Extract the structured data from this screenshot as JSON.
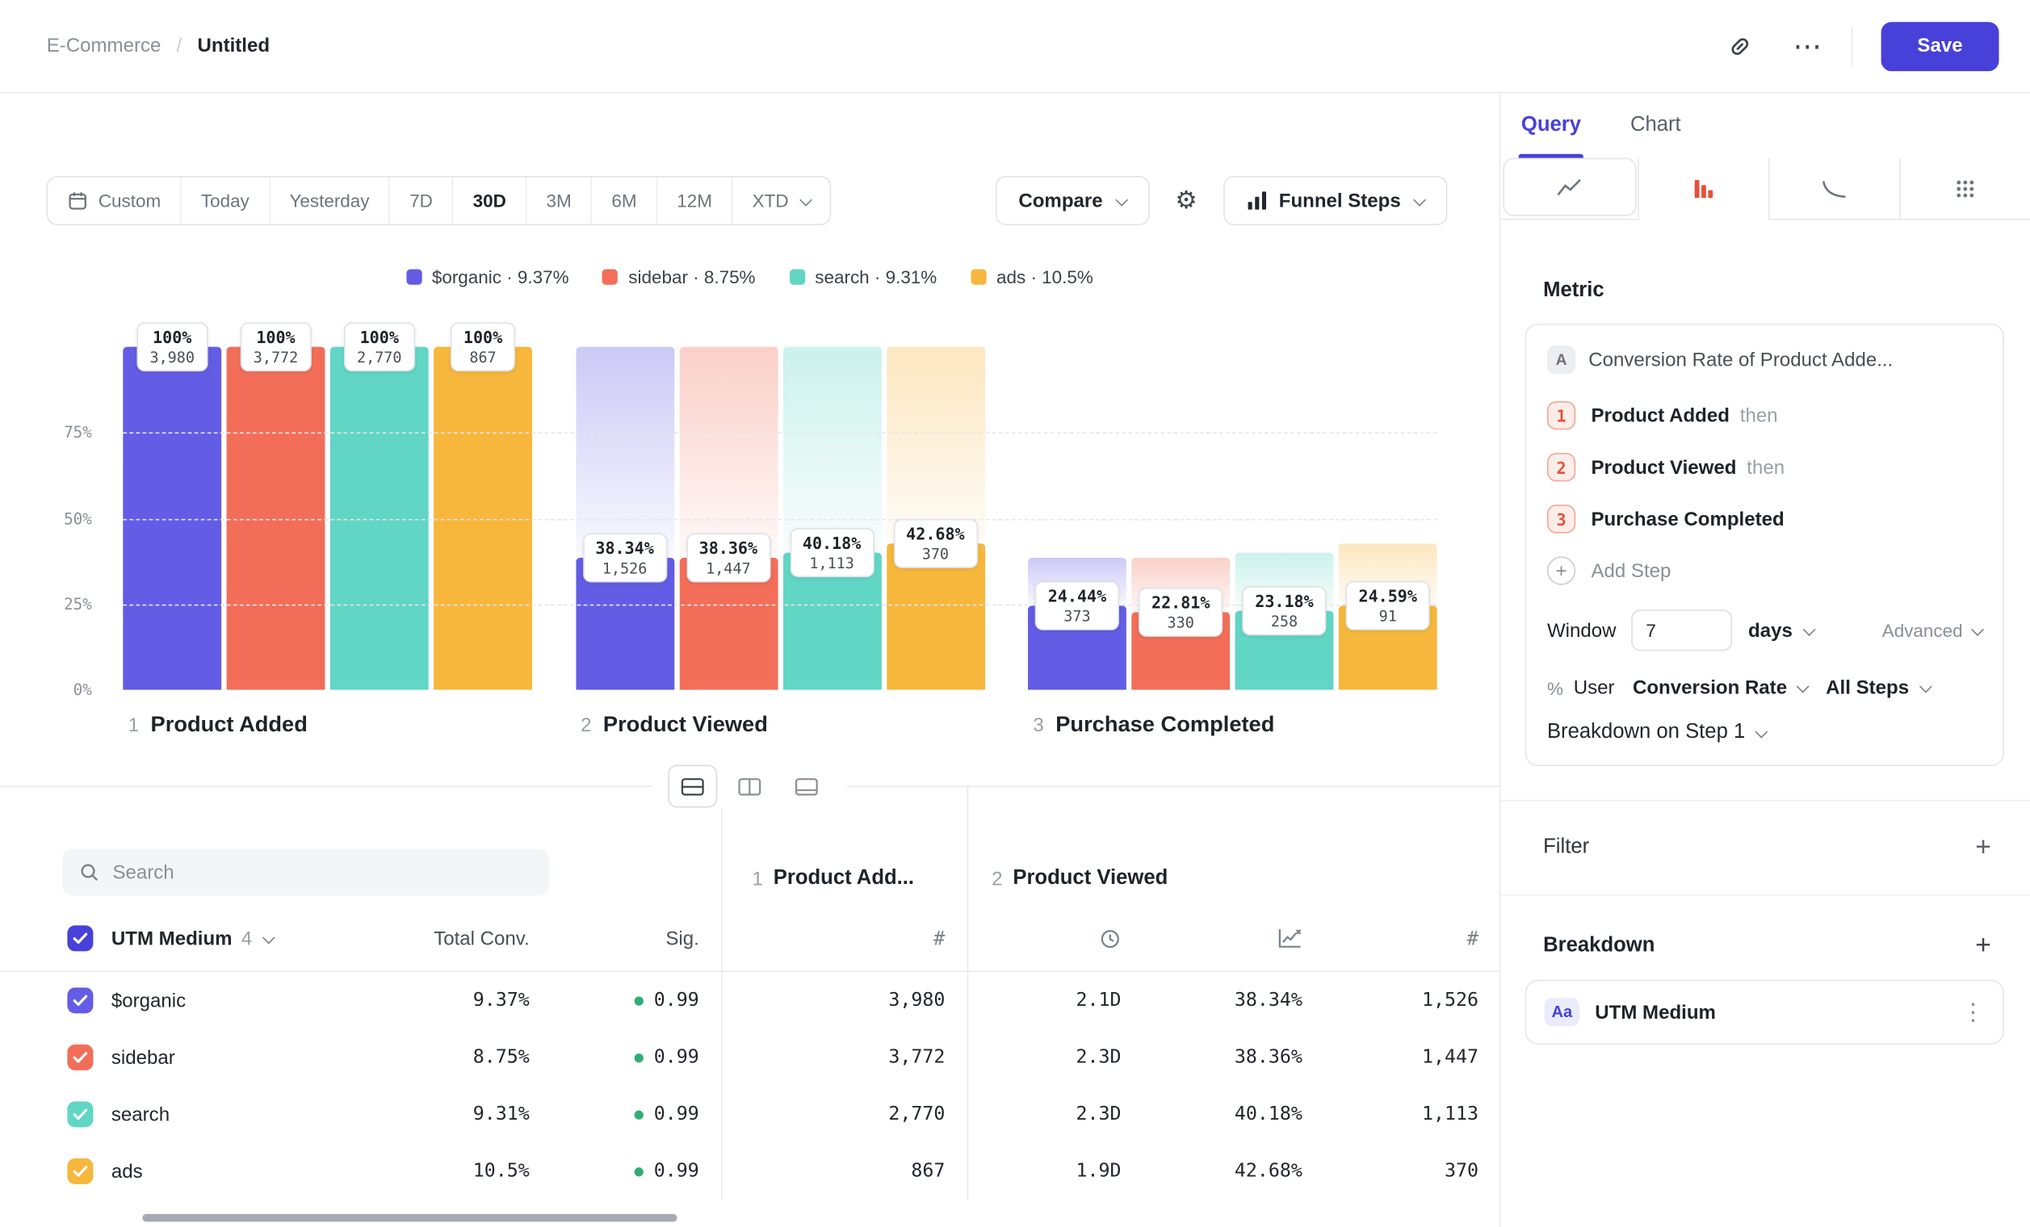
{
  "icons": {
    "gear": "⚙",
    "more": "⋯",
    "kebab": "⋮",
    "hash": "#",
    "percent": "%",
    "plus": "+"
  },
  "header": {
    "breadcrumb_project": "E-Commerce",
    "breadcrumb_separator": "/",
    "breadcrumb_current": "Untitled",
    "save_label": "Save"
  },
  "toolbar": {
    "date_ranges": [
      "Custom",
      "Today",
      "Yesterday",
      "7D",
      "30D",
      "3M",
      "6M",
      "12M",
      "XTD"
    ],
    "active_range": "30D",
    "compare_label": "Compare",
    "chart_type_label": "Funnel Steps"
  },
  "chart_data": {
    "type": "bar",
    "subtype": "funnel-steps",
    "ylim": [
      0,
      100
    ],
    "grid": "dashed-horizontal",
    "y_ticks": [
      "75%",
      "50%",
      "25%",
      "0%"
    ],
    "legend_position": "top-center",
    "series": [
      {
        "name": "$organic",
        "color": "#635CE5",
        "legend_pct": "9.37%",
        "steps": [
          {
            "pct": 100,
            "count": "3,980"
          },
          {
            "pct": 38.34,
            "count": "1,526"
          },
          {
            "pct": 24.44,
            "count": "373"
          }
        ]
      },
      {
        "name": "sidebar",
        "color": "#F26E58",
        "legend_pct": "8.75%",
        "steps": [
          {
            "pct": 100,
            "count": "3,772"
          },
          {
            "pct": 38.36,
            "count": "1,447"
          },
          {
            "pct": 22.81,
            "count": "330"
          }
        ]
      },
      {
        "name": "search",
        "color": "#61D6C4",
        "legend_pct": "9.31%",
        "steps": [
          {
            "pct": 100,
            "count": "2,770"
          },
          {
            "pct": 40.18,
            "count": "1,113"
          },
          {
            "pct": 23.18,
            "count": "258"
          }
        ]
      },
      {
        "name": "ads",
        "color": "#F6B73C",
        "legend_pct": "10.5%",
        "steps": [
          {
            "pct": 100,
            "count": "867"
          },
          {
            "pct": 42.68,
            "count": "370"
          },
          {
            "pct": 24.59,
            "count": "91"
          }
        ]
      }
    ],
    "step_labels": [
      {
        "index": "1",
        "name": "Product Added"
      },
      {
        "index": "2",
        "name": "Product Viewed"
      },
      {
        "index": "3",
        "name": "Purchase Completed"
      }
    ]
  },
  "table": {
    "search_placeholder": "Search",
    "group_headers": [
      {
        "index": "1",
        "label": "Product Add..."
      },
      {
        "index": "2",
        "label": "Product Viewed"
      }
    ],
    "breakdown_column": {
      "label": "UTM Medium",
      "count": "4"
    },
    "columns": {
      "total": "Total Conv.",
      "sig": "Sig."
    },
    "rows": [
      {
        "label": "$organic",
        "color": "#635CE5",
        "total": "9.37%",
        "sig": "0.99",
        "step1_count": "3,980",
        "median_time": "2.1D",
        "step2_conv": "38.34%",
        "step2_count": "1,526"
      },
      {
        "label": "sidebar",
        "color": "#F26E58",
        "total": "8.75%",
        "sig": "0.99",
        "step1_count": "3,772",
        "median_time": "2.3D",
        "step2_conv": "38.36%",
        "step2_count": "1,447"
      },
      {
        "label": "search",
        "color": "#61D6C4",
        "total": "9.31%",
        "sig": "0.99",
        "step1_count": "2,770",
        "median_time": "2.3D",
        "step2_conv": "40.18%",
        "step2_count": "1,113"
      },
      {
        "label": "ads",
        "color": "#F6B73C",
        "total": "10.5%",
        "sig": "0.99",
        "step1_count": "867",
        "median_time": "1.9D",
        "step2_conv": "42.68%",
        "step2_count": "370"
      }
    ]
  },
  "panel": {
    "tabs": [
      {
        "label": "Query",
        "active": true
      },
      {
        "label": "Chart",
        "active": false
      }
    ],
    "metric": {
      "heading": "Metric",
      "series_badge": "A",
      "title": "Conversion Rate of Product Adde...",
      "steps": [
        {
          "num": "1",
          "label": "Product Added",
          "suffix": "then"
        },
        {
          "num": "2",
          "label": "Product Viewed",
          "suffix": "then"
        },
        {
          "num": "3",
          "label": "Purchase Completed",
          "suffix": ""
        }
      ],
      "add_step_label": "Add Step",
      "window": {
        "label": "Window",
        "value": "7",
        "unit": "days",
        "advanced_label": "Advanced"
      },
      "measured": {
        "entity": "User",
        "measure": "Conversion Rate",
        "scope": "All Steps"
      },
      "breakdown_on": "Breakdown on Step 1"
    },
    "filter": {
      "heading": "Filter"
    },
    "breakdown": {
      "heading": "Breakdown",
      "item": {
        "badge": "Aa",
        "label": "UTM Medium"
      }
    }
  }
}
